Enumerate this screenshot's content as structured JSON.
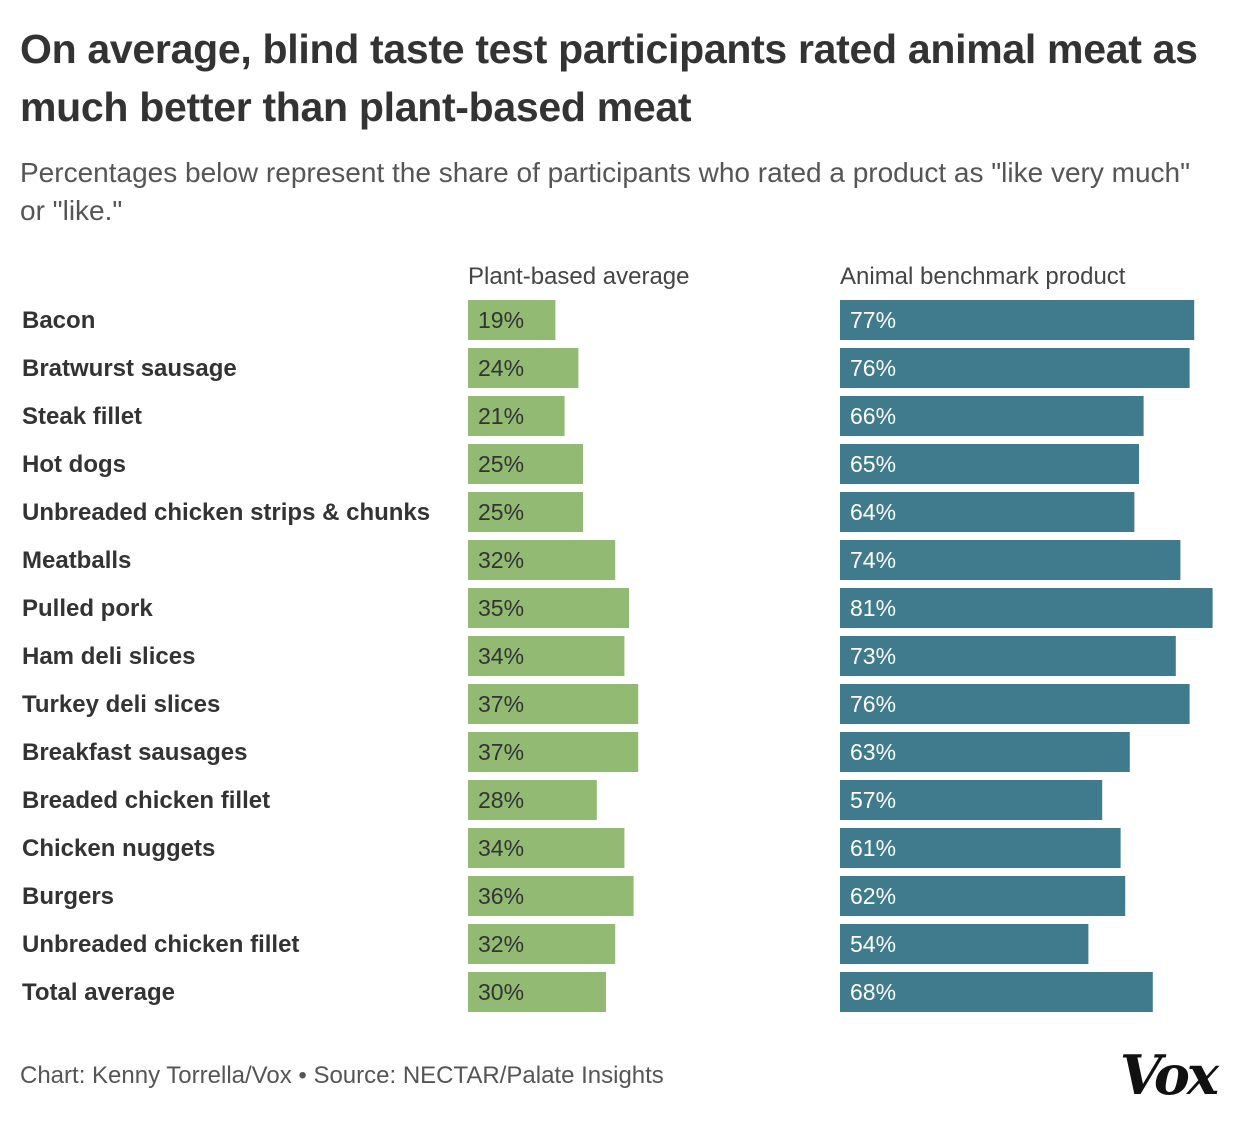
{
  "title": "On average, blind taste test participants rated animal meat as much better than plant-based meat",
  "subtitle": "Percentages below represent the share of participants who rated a product as \"like very much\" or \"like.\"",
  "footer": "Chart: Kenny Torrella/Vox • Source: NECTAR/Palate Insights",
  "logo_text": "Vox",
  "colors": {
    "plant": "#93ba73",
    "animal": "#3f7b8c",
    "plant_label": "#333333",
    "animal_label": "#ffffff"
  },
  "chart_data": {
    "type": "bar",
    "title": "On average, blind taste test participants rated animal meat as much better than plant-based meat",
    "subtitle": "Percentages below represent the share of participants who rated a product as \"like very much\" or \"like.\"",
    "unit": "%",
    "categories": [
      "Bacon",
      "Bratwurst sausage",
      "Steak fillet",
      "Hot dogs",
      "Unbreaded chicken strips & chunks",
      "Meatballs",
      "Pulled pork",
      "Ham deli slices",
      "Turkey deli slices",
      "Breakfast sausages",
      "Breaded chicken fillet",
      "Chicken nuggets",
      "Burgers",
      "Unbreaded chicken fillet",
      "Total average"
    ],
    "series": [
      {
        "name": "Plant-based average",
        "values": [
          19,
          24,
          21,
          25,
          25,
          32,
          35,
          34,
          37,
          37,
          28,
          34,
          36,
          32,
          30
        ]
      },
      {
        "name": "Animal benchmark product",
        "values": [
          77,
          76,
          66,
          65,
          64,
          74,
          81,
          73,
          76,
          63,
          57,
          61,
          62,
          54,
          68
        ]
      }
    ],
    "grid": false,
    "legend": "column headers above each bar group"
  }
}
